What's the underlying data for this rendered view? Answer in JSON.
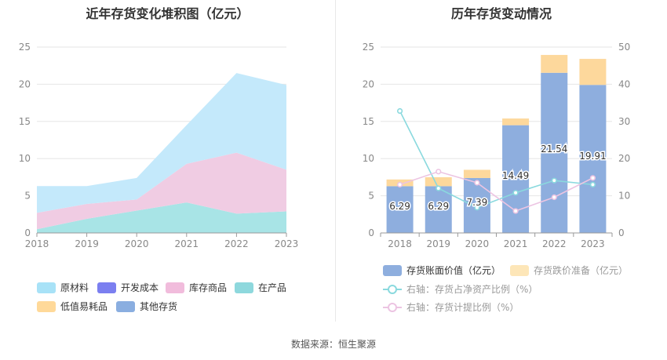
{
  "left": {
    "title": "近年存货变化堆积图（亿元）",
    "legend": [
      {
        "name": "原材料",
        "color": "#a8e2f7"
      },
      {
        "name": "开发成本",
        "color": "#7b7ff0"
      },
      {
        "name": "库存商品",
        "color": "#f1bcdc"
      },
      {
        "name": "在产品",
        "color": "#8ed8dd"
      },
      {
        "name": "低值易耗品",
        "color": "#ffd999"
      },
      {
        "name": "其他存货",
        "color": "#8aaee0"
      }
    ]
  },
  "right": {
    "title": "历年存货变动情况",
    "legend": [
      {
        "name": "存货账面价值（亿元）",
        "color": "#8eaede"
      },
      {
        "name": "存货跌价准备（亿元）",
        "color": "#fde6b8"
      },
      {
        "name": "右轴：存货占净资产比例（%）",
        "color": "#8ad9de"
      },
      {
        "name": "右轴：存货计提比例（%）",
        "color": "#ecc4e2"
      }
    ]
  },
  "chart_data": [
    {
      "type": "area",
      "title": "近年存货变化堆积图（亿元）",
      "x": [
        "2018",
        "2019",
        "2020",
        "2021",
        "2022",
        "2023"
      ],
      "ylim": [
        0,
        25
      ],
      "yticks": [
        0,
        5,
        10,
        15,
        20,
        25
      ],
      "stacked": true,
      "grid": true,
      "series": [
        {
          "name": "在产品",
          "color": "#a8e4e6",
          "values": [
            0.5,
            1.9,
            3.0,
            4.1,
            2.6,
            2.9
          ]
        },
        {
          "name": "库存商品",
          "color": "#f0cce3",
          "values": [
            2.2,
            2.0,
            1.5,
            5.2,
            8.2,
            5.6
          ]
        },
        {
          "name": "原材料",
          "color": "#c4e9fb",
          "values": [
            3.6,
            2.4,
            2.9,
            5.2,
            10.7,
            11.4
          ]
        }
      ]
    },
    {
      "type": "bar",
      "title": "历年存货变动情况",
      "categories": [
        "2018",
        "2019",
        "2020",
        "2021",
        "2022",
        "2023"
      ],
      "ylim": [
        0,
        25
      ],
      "yticks": [
        0,
        5,
        10,
        15,
        20,
        25
      ],
      "y2lim": [
        0,
        50
      ],
      "y2ticks": [
        0,
        10,
        20,
        30,
        40,
        50
      ],
      "stacked": true,
      "series": [
        {
          "name": "存货账面价值（亿元）",
          "axis": "left",
          "color": "#8eaede",
          "values": [
            6.29,
            6.29,
            7.39,
            14.49,
            21.54,
            19.91
          ],
          "labels": [
            "6.29",
            "6.29",
            "7.39",
            "14.49",
            "21.54",
            "19.91"
          ]
        },
        {
          "name": "存货跌价准备（亿元）",
          "axis": "left",
          "color": "#fdd89c",
          "values": [
            0.9,
            1.2,
            1.1,
            0.9,
            2.4,
            3.5
          ]
        },
        {
          "name": "右轴：存货占净资产比例（%）",
          "axis": "right",
          "type": "line",
          "color": "#8ad9de",
          "values": [
            32.8,
            12.0,
            6.8,
            10.8,
            14.1,
            13.0
          ]
        },
        {
          "name": "右轴：存货计提比例（%）",
          "axis": "right",
          "type": "line",
          "color": "#ecc4e2",
          "values": [
            13.0,
            16.5,
            13.5,
            5.9,
            9.6,
            14.8
          ]
        }
      ]
    }
  ],
  "source": "数据来源：恒生聚源"
}
